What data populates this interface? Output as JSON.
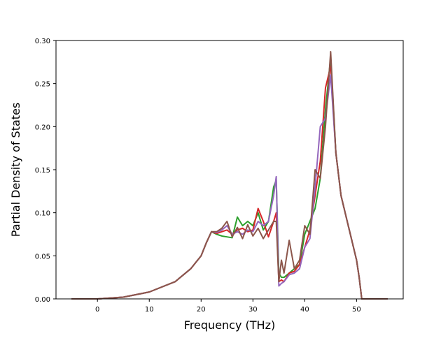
{
  "chart_data": {
    "type": "line",
    "title": "",
    "xlabel": "Frequency (THz)",
    "ylabel": "Partial Density of States",
    "xlim": [
      -8,
      59
    ],
    "ylim": [
      0,
      0.3
    ],
    "xticks": [
      0,
      10,
      20,
      30,
      40,
      50
    ],
    "yticks": [
      0.0,
      0.05,
      0.1,
      0.15,
      0.2,
      0.25,
      0.3
    ],
    "xtick_labels": [
      "0",
      "10",
      "20",
      "30",
      "40",
      "50"
    ],
    "ytick_labels": [
      "0.00",
      "0.05",
      "0.10",
      "0.15",
      "0.20",
      "0.25",
      "0.30"
    ],
    "grid": false,
    "legend": "none",
    "series": [
      {
        "color": "#2ca02c",
        "x": [
          -5,
          0,
          5,
          10,
          15,
          18,
          20,
          21,
          22,
          23,
          24,
          25,
          26,
          27,
          28,
          29,
          30,
          31,
          32,
          33,
          34,
          34.5,
          35,
          35.5,
          36,
          37,
          38,
          39,
          40,
          41,
          42,
          43,
          44,
          45,
          46,
          47,
          48,
          49,
          50,
          50.5,
          51,
          56
        ],
        "values": [
          0,
          0,
          0.002,
          0.008,
          0.02,
          0.035,
          0.05,
          0.065,
          0.078,
          0.075,
          0.073,
          0.072,
          0.071,
          0.095,
          0.085,
          0.09,
          0.085,
          0.1,
          0.08,
          0.09,
          0.13,
          0.138,
          0.03,
          0.025,
          0.025,
          0.03,
          0.035,
          0.04,
          0.075,
          0.09,
          0.105,
          0.14,
          0.22,
          0.28,
          0.17,
          0.12,
          0.095,
          0.07,
          0.045,
          0.025,
          0.0,
          0.0
        ]
      },
      {
        "color": "#d62728",
        "x": [
          -5,
          0,
          5,
          10,
          15,
          18,
          20,
          21,
          22,
          23,
          24,
          25,
          26,
          27,
          28,
          29,
          30,
          31,
          32,
          33,
          34,
          34.5,
          35,
          35.5,
          36,
          37,
          38,
          39,
          40,
          41,
          42,
          43,
          44,
          45,
          46,
          47,
          48,
          49,
          50,
          50.5,
          51,
          56
        ],
        "values": [
          0,
          0,
          0.002,
          0.008,
          0.02,
          0.035,
          0.05,
          0.065,
          0.078,
          0.076,
          0.078,
          0.08,
          0.075,
          0.08,
          0.082,
          0.078,
          0.08,
          0.105,
          0.09,
          0.072,
          0.09,
          0.1,
          0.02,
          0.022,
          0.02,
          0.03,
          0.032,
          0.04,
          0.06,
          0.08,
          0.12,
          0.16,
          0.245,
          0.27,
          0.17,
          0.12,
          0.095,
          0.07,
          0.045,
          0.025,
          0.0,
          0.0
        ]
      },
      {
        "color": "#9467bd",
        "x": [
          -5,
          0,
          5,
          10,
          15,
          18,
          20,
          21,
          22,
          23,
          24,
          25,
          26,
          27,
          28,
          29,
          30,
          31,
          32,
          33,
          34,
          34.5,
          35,
          35.5,
          36,
          37,
          38,
          39,
          40,
          41,
          42,
          43,
          44,
          45,
          46,
          47,
          48,
          49,
          50,
          50.5,
          51,
          56
        ],
        "values": [
          0,
          0,
          0.002,
          0.008,
          0.02,
          0.035,
          0.05,
          0.065,
          0.078,
          0.077,
          0.08,
          0.085,
          0.075,
          0.078,
          0.075,
          0.08,
          0.078,
          0.09,
          0.085,
          0.09,
          0.12,
          0.142,
          0.015,
          0.018,
          0.02,
          0.028,
          0.03,
          0.035,
          0.06,
          0.07,
          0.13,
          0.2,
          0.21,
          0.26,
          0.17,
          0.12,
          0.095,
          0.07,
          0.045,
          0.025,
          0.0,
          0.0
        ]
      },
      {
        "color": "#8c564b",
        "x": [
          -5,
          0,
          5,
          10,
          15,
          18,
          20,
          21,
          22,
          23,
          24,
          25,
          26,
          27,
          28,
          29,
          30,
          31,
          32,
          33,
          34,
          34.5,
          35,
          35.5,
          36,
          37,
          38,
          39,
          40,
          41,
          42,
          43,
          44,
          45,
          46,
          47,
          48,
          49,
          50,
          50.5,
          51,
          56
        ],
        "values": [
          0,
          0,
          0.002,
          0.008,
          0.02,
          0.035,
          0.05,
          0.065,
          0.078,
          0.078,
          0.082,
          0.09,
          0.072,
          0.083,
          0.07,
          0.086,
          0.073,
          0.082,
          0.07,
          0.08,
          0.09,
          0.09,
          0.02,
          0.045,
          0.03,
          0.068,
          0.035,
          0.045,
          0.085,
          0.075,
          0.15,
          0.14,
          0.2,
          0.287,
          0.17,
          0.12,
          0.095,
          0.07,
          0.045,
          0.025,
          0.0,
          0.0
        ]
      }
    ]
  }
}
